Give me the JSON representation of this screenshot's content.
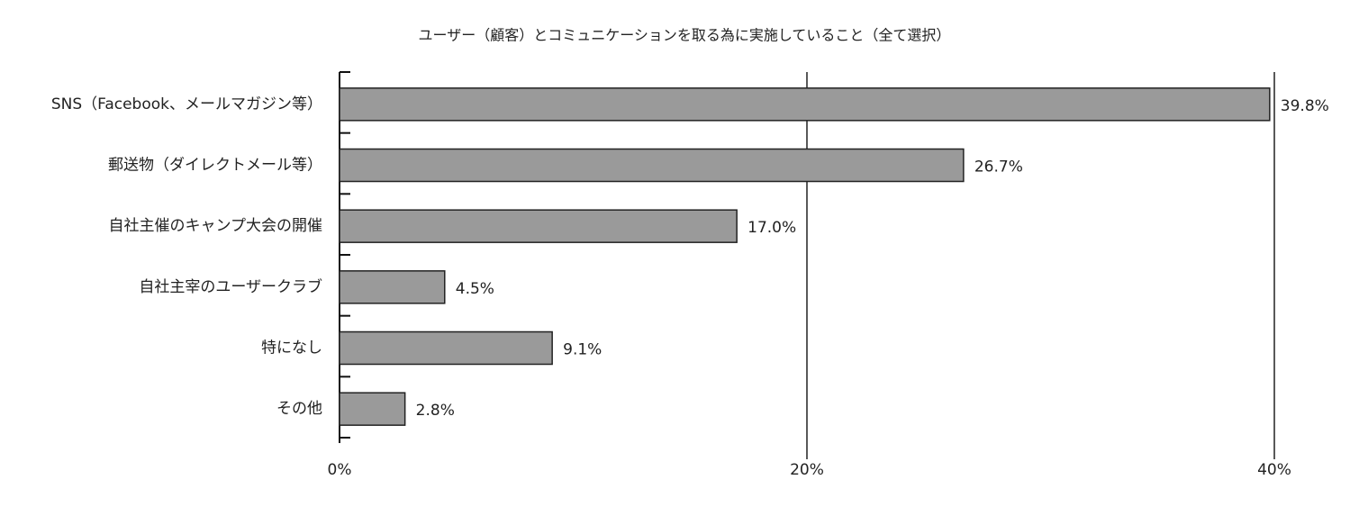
{
  "chart_data": {
    "type": "bar",
    "orientation": "horizontal",
    "title": "ユーザー（顧客）とコミュニケーションを取る為に実施していること（全て選択）",
    "categories": [
      "SNS（Facebook、メールマガジン等）",
      "郵送物（ダイレクトメール等）",
      "自社主催のキャンプ大会の開催",
      "自社主宰のユーザークラブ",
      "特になし",
      "その他"
    ],
    "values": [
      39.8,
      26.7,
      17.0,
      4.5,
      9.1,
      2.8
    ],
    "value_labels": [
      "39.8%",
      "26.7%",
      "17.0%",
      "4.5%",
      "9.1%",
      "2.8%"
    ],
    "color": "#9a9a9a",
    "xlim": [
      0,
      40
    ],
    "xticks": [
      {
        "value": 0,
        "label": "0%"
      },
      {
        "value": 20,
        "label": "20%"
      },
      {
        "value": 40,
        "label": "40%"
      }
    ],
    "grid": true
  }
}
